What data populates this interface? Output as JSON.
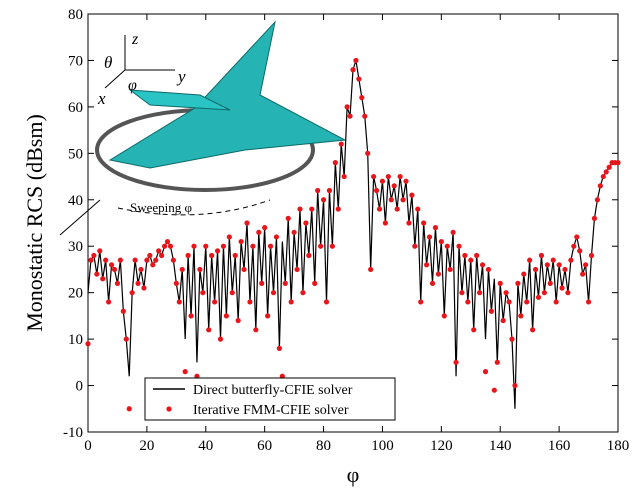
{
  "chart_data": {
    "type": "line_scatter",
    "xlabel": "φ",
    "ylabel": "Monostatic RCS (dBsm)",
    "xlim": [
      0,
      180
    ],
    "ylim": [
      -10,
      80
    ],
    "xticks": [
      0,
      20,
      40,
      60,
      80,
      100,
      120,
      140,
      160,
      180
    ],
    "yticks": [
      -10,
      0,
      10,
      20,
      30,
      40,
      50,
      60,
      70,
      80
    ],
    "legend": "lower left",
    "annotations": [
      "θ",
      "z",
      "y",
      "x",
      "φ",
      "Sweeping φ"
    ],
    "x": [
      0,
      1,
      2,
      3,
      4,
      5,
      6,
      7,
      8,
      9,
      10,
      11,
      12,
      13,
      14,
      15,
      16,
      17,
      18,
      19,
      20,
      21,
      22,
      23,
      24,
      25,
      26,
      27,
      28,
      29,
      30,
      31,
      32,
      33,
      34,
      35,
      36,
      37,
      38,
      39,
      40,
      41,
      42,
      43,
      44,
      45,
      46,
      47,
      48,
      49,
      50,
      51,
      52,
      53,
      54,
      55,
      56,
      57,
      58,
      59,
      60,
      61,
      62,
      63,
      64,
      65,
      66,
      67,
      68,
      69,
      70,
      71,
      72,
      73,
      74,
      75,
      76,
      77,
      78,
      79,
      80,
      81,
      82,
      83,
      84,
      85,
      86,
      87,
      88,
      89,
      90,
      91,
      92,
      93,
      94,
      95,
      96,
      97,
      98,
      99,
      100,
      101,
      102,
      103,
      104,
      105,
      106,
      107,
      108,
      109,
      110,
      111,
      112,
      113,
      114,
      115,
      116,
      117,
      118,
      119,
      120,
      121,
      122,
      123,
      124,
      125,
      126,
      127,
      128,
      129,
      130,
      131,
      132,
      133,
      134,
      135,
      136,
      137,
      138,
      139,
      140,
      141,
      142,
      143,
      144,
      145,
      146,
      147,
      148,
      149,
      150,
      151,
      152,
      153,
      154,
      155,
      156,
      157,
      158,
      159,
      160,
      161,
      162,
      163,
      164,
      165,
      166,
      167,
      168,
      169,
      170,
      171,
      172,
      173,
      174,
      175,
      176,
      177,
      178,
      179,
      180
    ],
    "series": [
      {
        "name": "Direct butterfly-CFIE solver",
        "kind": "line",
        "color": "#000000",
        "values": [
          20,
          27,
          28,
          24,
          29,
          23,
          27,
          18,
          26,
          25,
          22,
          27,
          16,
          10,
          2,
          20,
          27,
          22,
          25,
          21,
          27,
          28,
          26,
          27,
          29,
          28,
          30,
          31,
          30,
          27,
          22,
          18,
          25,
          10,
          28,
          15,
          30,
          5,
          25,
          20,
          30,
          12,
          28,
          18,
          29,
          10,
          30,
          15,
          32,
          20,
          28,
          14,
          31,
          25,
          35,
          18,
          30,
          12,
          33,
          22,
          34,
          15,
          30,
          20,
          32,
          8,
          31,
          22,
          36,
          18,
          33,
          25,
          38,
          20,
          35,
          28,
          38,
          22,
          42,
          30,
          40,
          18,
          42,
          30,
          48,
          38,
          52,
          45,
          60,
          58,
          68,
          70,
          66,
          62,
          58,
          50,
          25,
          45,
          42,
          38,
          44,
          35,
          45,
          40,
          43,
          38,
          45,
          40,
          44,
          35,
          41,
          30,
          38,
          18,
          35,
          26,
          32,
          22,
          34,
          24,
          31,
          15,
          30,
          25,
          33,
          2,
          30,
          20,
          28,
          18,
          27,
          12,
          28,
          20,
          26,
          10,
          25,
          16,
          23,
          5,
          22,
          14,
          20,
          18,
          10,
          -5,
          22,
          15,
          24,
          18,
          27,
          12,
          25,
          19,
          28,
          20,
          26,
          22,
          27,
          18,
          26,
          21,
          25,
          20,
          27,
          30,
          32,
          29,
          24,
          26,
          18,
          28,
          36,
          40,
          43,
          45,
          46,
          47,
          48,
          48,
          48
        ]
      },
      {
        "name": "Iterative FMM-CFIE solver",
        "kind": "scatter",
        "color": "#e8161b",
        "values": [
          9,
          27,
          28,
          24,
          29,
          23,
          27,
          18,
          26,
          25,
          22,
          27,
          16,
          10,
          -5,
          20,
          27,
          22,
          25,
          21,
          27,
          28,
          26,
          27,
          29,
          28,
          30,
          31,
          30,
          27,
          22,
          18,
          25,
          3,
          28,
          15,
          30,
          2,
          25,
          20,
          30,
          12,
          28,
          18,
          29,
          10,
          30,
          15,
          32,
          20,
          28,
          14,
          31,
          25,
          35,
          18,
          30,
          12,
          33,
          22,
          34,
          15,
          30,
          20,
          32,
          8,
          2,
          22,
          36,
          18,
          33,
          25,
          38,
          20,
          35,
          28,
          38,
          22,
          42,
          30,
          40,
          18,
          42,
          30,
          48,
          38,
          52,
          45,
          60,
          58,
          68,
          70,
          66,
          62,
          58,
          50,
          25,
          45,
          42,
          38,
          44,
          35,
          45,
          40,
          43,
          38,
          45,
          40,
          44,
          35,
          41,
          30,
          38,
          18,
          35,
          26,
          32,
          22,
          34,
          24,
          31,
          15,
          30,
          25,
          33,
          5,
          30,
          20,
          28,
          18,
          27,
          12,
          28,
          20,
          26,
          3,
          25,
          16,
          -1,
          5,
          22,
          14,
          20,
          18,
          10,
          0,
          22,
          15,
          24,
          18,
          27,
          12,
          25,
          19,
          28,
          20,
          26,
          22,
          27,
          18,
          26,
          21,
          25,
          20,
          27,
          30,
          32,
          29,
          24,
          26,
          18,
          28,
          36,
          40,
          43,
          45,
          46,
          47,
          48,
          48,
          48
        ]
      }
    ]
  }
}
